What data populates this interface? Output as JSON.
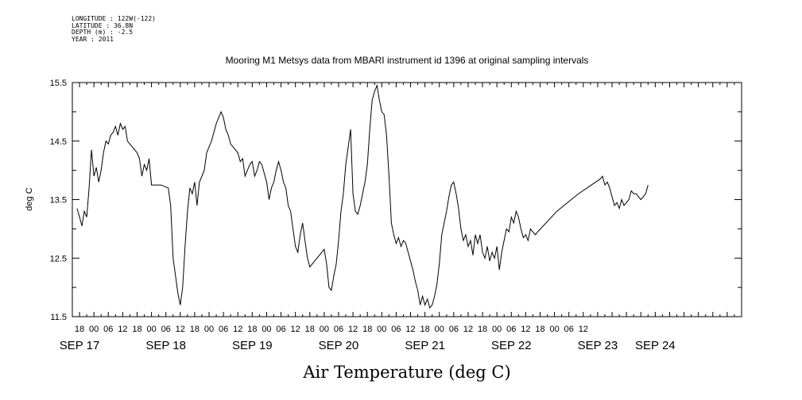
{
  "header": {
    "longitude": "LONGITUDE : 122W(-122)",
    "latitude": "LATITUDE : 36.8N",
    "depth": "DEPTH (m) : -2.5",
    "year": "YEAR : 2011"
  },
  "chart_data": {
    "type": "line",
    "title": "Mooring M1 Metsys data from MBARI instrument id 1396 at original sampling intervals",
    "xlabel": "Air Temperature (deg C)",
    "ylabel": "deg C",
    "yticks": [
      "11.5",
      "12.5",
      "13.5",
      "14.5",
      "15.5"
    ],
    "ylim": [
      11.5,
      15.5
    ],
    "xlim_hours": [
      -9,
      270
    ],
    "x_units": "hours from SEP 17 00:00 2011",
    "hour_tick_labels": [
      "18",
      "00",
      "06",
      "12",
      "18",
      "00",
      "06",
      "12",
      "18",
      "00",
      "06",
      "12",
      "18",
      "00",
      "06",
      "12",
      "18",
      "00",
      "06",
      "12",
      "18",
      "00",
      "06",
      "12",
      "18",
      "00",
      "06",
      "12",
      "18",
      "00",
      "06",
      "12",
      "18",
      "00",
      "06",
      "12"
    ],
    "date_labels": [
      "SEP 17",
      "SEP 18",
      "SEP 19",
      "SEP 20",
      "SEP 21",
      "SEP 22",
      "SEP 23",
      "SEP 24"
    ],
    "grid": false,
    "series": [
      {
        "color": "#000000",
        "points": [
          [
            -7,
            13.35
          ],
          [
            -6,
            13.2
          ],
          [
            -5,
            13.05
          ],
          [
            -4,
            13.3
          ],
          [
            -3,
            13.2
          ],
          [
            -2,
            13.7
          ],
          [
            -1,
            14.35
          ],
          [
            0,
            13.9
          ],
          [
            1,
            14.05
          ],
          [
            2,
            13.8
          ],
          [
            3,
            14.0
          ],
          [
            4,
            14.3
          ],
          [
            5,
            14.5
          ],
          [
            6,
            14.45
          ],
          [
            7,
            14.6
          ],
          [
            8,
            14.65
          ],
          [
            9,
            14.75
          ],
          [
            10,
            14.6
          ],
          [
            11,
            14.8
          ],
          [
            12,
            14.7
          ],
          [
            13,
            14.75
          ],
          [
            14,
            14.5
          ],
          [
            15,
            14.45
          ],
          [
            16,
            14.4
          ],
          [
            17,
            14.35
          ],
          [
            18,
            14.3
          ],
          [
            19,
            14.2
          ],
          [
            20,
            13.9
          ],
          [
            21,
            14.1
          ],
          [
            22,
            14.0
          ],
          [
            23,
            14.2
          ],
          [
            24,
            13.75
          ],
          [
            28,
            13.75
          ],
          [
            31,
            13.7
          ],
          [
            32,
            13.4
          ],
          [
            33,
            12.5
          ],
          [
            34,
            12.2
          ],
          [
            35,
            11.9
          ],
          [
            36,
            11.7
          ],
          [
            37,
            12.0
          ],
          [
            38,
            12.7
          ],
          [
            39,
            13.3
          ],
          [
            40,
            13.7
          ],
          [
            41,
            13.6
          ],
          [
            42,
            13.8
          ],
          [
            43,
            13.4
          ],
          [
            44,
            13.8
          ],
          [
            45,
            13.9
          ],
          [
            46,
            14.0
          ],
          [
            47,
            14.3
          ],
          [
            48,
            14.4
          ],
          [
            49,
            14.5
          ],
          [
            50,
            14.65
          ],
          [
            51,
            14.8
          ],
          [
            52,
            14.9
          ],
          [
            53,
            15.0
          ],
          [
            54,
            14.9
          ],
          [
            55,
            14.7
          ],
          [
            56,
            14.6
          ],
          [
            57,
            14.45
          ],
          [
            58,
            14.4
          ],
          [
            59,
            14.35
          ],
          [
            60,
            14.3
          ],
          [
            61,
            14.15
          ],
          [
            62,
            14.2
          ],
          [
            63,
            13.9
          ],
          [
            64,
            14.0
          ],
          [
            65,
            14.1
          ],
          [
            66,
            14.15
          ],
          [
            67,
            13.9
          ],
          [
            68,
            14.0
          ],
          [
            69,
            14.15
          ],
          [
            70,
            14.1
          ],
          [
            71,
            13.95
          ],
          [
            72,
            13.8
          ],
          [
            73,
            13.5
          ],
          [
            74,
            13.7
          ],
          [
            75,
            13.8
          ],
          [
            76,
            14.0
          ],
          [
            77,
            14.15
          ],
          [
            78,
            14.0
          ],
          [
            79,
            13.8
          ],
          [
            80,
            13.7
          ],
          [
            81,
            13.4
          ],
          [
            82,
            13.3
          ],
          [
            83,
            13.0
          ],
          [
            84,
            12.7
          ],
          [
            85,
            12.6
          ],
          [
            86,
            12.9
          ],
          [
            87,
            13.1
          ],
          [
            88,
            12.8
          ],
          [
            89,
            12.5
          ],
          [
            90,
            12.35
          ],
          [
            96,
            12.65
          ],
          [
            97,
            12.4
          ],
          [
            98,
            12.0
          ],
          [
            99,
            11.95
          ],
          [
            100,
            12.2
          ],
          [
            101,
            12.4
          ],
          [
            102,
            12.8
          ],
          [
            103,
            13.3
          ],
          [
            104,
            13.6
          ],
          [
            105,
            14.1
          ],
          [
            106,
            14.4
          ],
          [
            107,
            14.7
          ],
          [
            108,
            13.6
          ],
          [
            109,
            13.3
          ],
          [
            110,
            13.25
          ],
          [
            111,
            13.4
          ],
          [
            112,
            13.6
          ],
          [
            113,
            13.8
          ],
          [
            114,
            14.1
          ],
          [
            115,
            14.7
          ],
          [
            116,
            15.2
          ],
          [
            117,
            15.35
          ],
          [
            118,
            15.45
          ],
          [
            119,
            15.2
          ],
          [
            120,
            15.0
          ],
          [
            121,
            14.95
          ],
          [
            122,
            14.6
          ],
          [
            123,
            13.9
          ],
          [
            124,
            13.1
          ],
          [
            125,
            12.9
          ],
          [
            126,
            12.75
          ],
          [
            127,
            12.85
          ],
          [
            128,
            12.7
          ],
          [
            129,
            12.8
          ],
          [
            130,
            12.75
          ],
          [
            131,
            12.6
          ],
          [
            132,
            12.45
          ],
          [
            133,
            12.3
          ],
          [
            134,
            12.1
          ],
          [
            135,
            11.95
          ],
          [
            136,
            11.7
          ],
          [
            137,
            11.85
          ],
          [
            138,
            11.7
          ],
          [
            139,
            11.8
          ],
          [
            140,
            11.65
          ],
          [
            141,
            11.7
          ],
          [
            142,
            11.85
          ],
          [
            143,
            12.05
          ],
          [
            144,
            12.4
          ],
          [
            145,
            12.9
          ],
          [
            146,
            13.1
          ],
          [
            147,
            13.3
          ],
          [
            148,
            13.55
          ],
          [
            149,
            13.75
          ],
          [
            150,
            13.8
          ],
          [
            151,
            13.6
          ],
          [
            152,
            13.35
          ],
          [
            153,
            13.0
          ],
          [
            154,
            12.8
          ],
          [
            155,
            12.9
          ],
          [
            156,
            12.7
          ],
          [
            157,
            12.8
          ],
          [
            158,
            12.55
          ],
          [
            159,
            12.9
          ],
          [
            160,
            12.75
          ],
          [
            161,
            12.9
          ],
          [
            162,
            12.6
          ],
          [
            163,
            12.5
          ],
          [
            164,
            12.7
          ],
          [
            165,
            12.45
          ],
          [
            166,
            12.6
          ],
          [
            167,
            12.5
          ],
          [
            168,
            12.7
          ],
          [
            169,
            12.3
          ],
          [
            170,
            12.6
          ],
          [
            171,
            12.8
          ],
          [
            172,
            13.0
          ],
          [
            173,
            12.95
          ],
          [
            174,
            13.2
          ],
          [
            175,
            13.1
          ],
          [
            176,
            13.3
          ],
          [
            177,
            13.2
          ],
          [
            178,
            13.0
          ],
          [
            179,
            12.85
          ],
          [
            180,
            12.9
          ],
          [
            181,
            12.8
          ],
          [
            182,
            13.0
          ],
          [
            183,
            12.95
          ],
          [
            184,
            12.9
          ],
          [
            185,
            12.95
          ],
          [
            193,
            13.3
          ],
          [
            202,
            13.6
          ],
          [
            211,
            13.85
          ],
          [
            212,
            13.9
          ],
          [
            213,
            13.75
          ],
          [
            214,
            13.8
          ],
          [
            215,
            13.7
          ],
          [
            216,
            13.55
          ],
          [
            217,
            13.4
          ],
          [
            218,
            13.45
          ],
          [
            219,
            13.35
          ],
          [
            220,
            13.5
          ],
          [
            221,
            13.4
          ],
          [
            222,
            13.45
          ],
          [
            223,
            13.5
          ],
          [
            224,
            13.65
          ],
          [
            225,
            13.6
          ],
          [
            226,
            13.6
          ],
          [
            227,
            13.55
          ],
          [
            228,
            13.5
          ],
          [
            229,
            13.55
          ],
          [
            230,
            13.6
          ],
          [
            231,
            13.75
          ]
        ]
      }
    ]
  }
}
